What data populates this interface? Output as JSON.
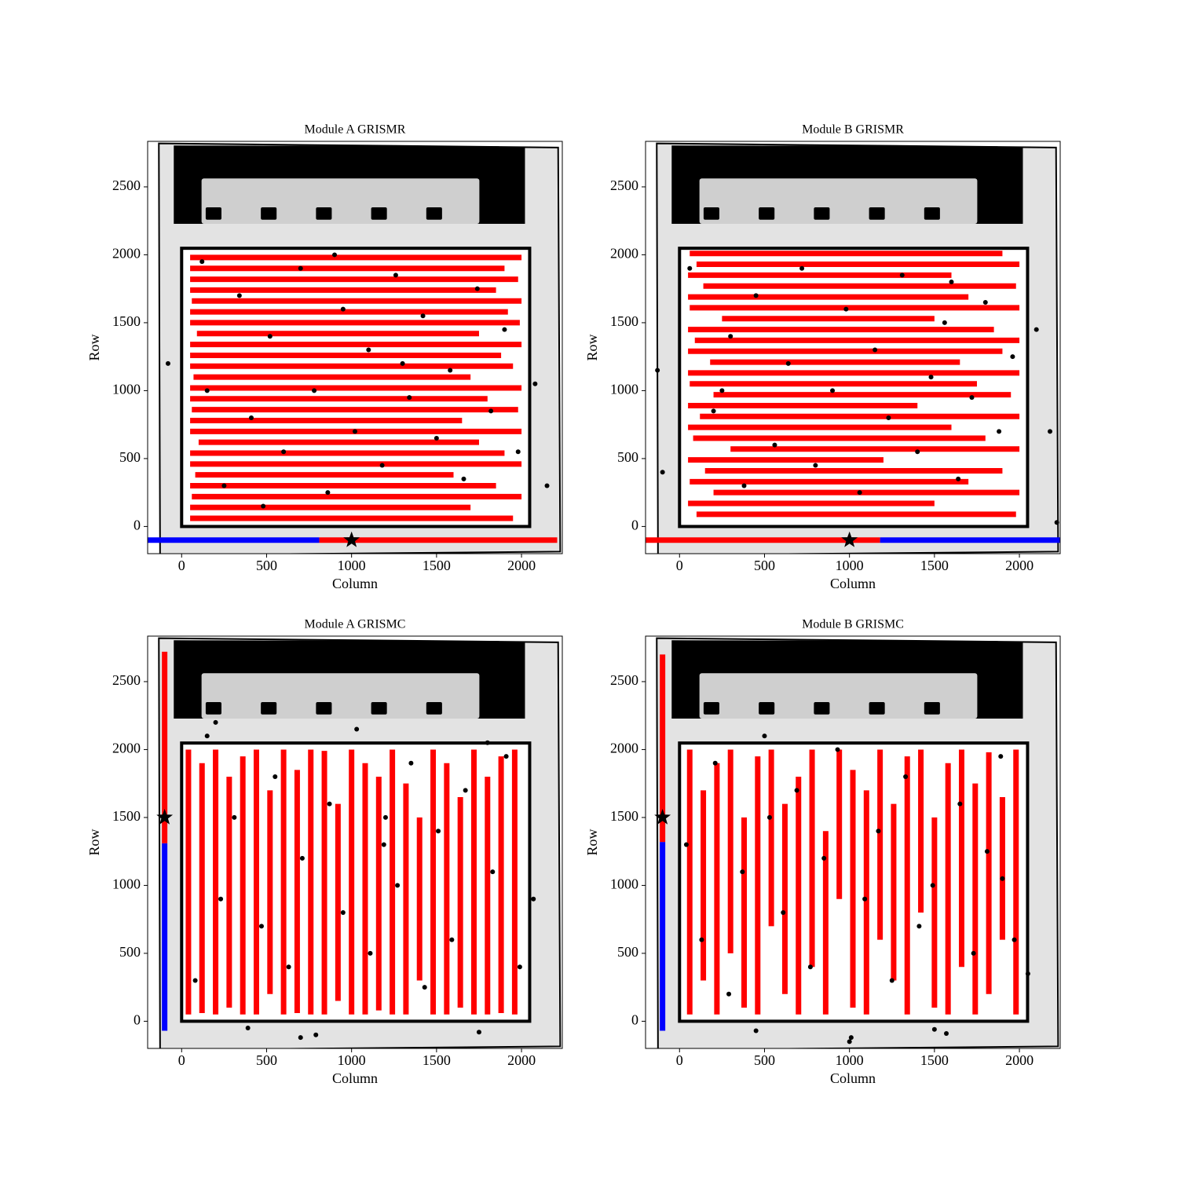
{
  "chart_data": [
    {
      "type": "scatter",
      "title": "Module A GRISMR",
      "xlabel": "Column",
      "ylabel": "Row",
      "xlim": [
        -200,
        2240
      ],
      "ylim": [
        -200,
        2835
      ],
      "xticks": [
        0,
        500,
        1000,
        1500,
        2000
      ],
      "yticks": [
        0,
        500,
        1000,
        1500,
        2000,
        2500
      ],
      "detector_box": {
        "x": [
          0,
          2048
        ],
        "y": [
          0,
          2048
        ]
      },
      "traces": {
        "orientation": "horizontal",
        "color": "#ff0000",
        "x0": [
          50,
          50,
          60,
          50,
          80,
          50,
          50,
          100,
          50,
          50,
          60,
          50,
          50,
          70,
          50,
          50,
          50,
          90,
          50,
          50,
          60,
          50,
          50,
          50,
          50
        ],
        "x1": [
          1950,
          1700,
          2000,
          1850,
          1600,
          2000,
          1900,
          1750,
          2000,
          1650,
          1980,
          1800,
          2000,
          1700,
          1950,
          1880,
          2000,
          1750,
          1990,
          1920,
          2000,
          1850,
          1980,
          1900,
          2000
        ],
        "y": [
          60,
          140,
          220,
          300,
          380,
          460,
          540,
          620,
          700,
          780,
          860,
          940,
          1020,
          1100,
          1180,
          1260,
          1340,
          1420,
          1500,
          1580,
          1660,
          1740,
          1820,
          1900,
          1980
        ]
      },
      "sources": {
        "color": "#000000",
        "x": [
          -80,
          120,
          250,
          340,
          410,
          520,
          600,
          700,
          780,
          860,
          950,
          1020,
          1100,
          1180,
          1260,
          1340,
          1420,
          1500,
          1580,
          1660,
          1740,
          1820,
          1900,
          1980,
          2080,
          2150,
          150,
          480,
          900,
          1300
        ],
        "y": [
          1200,
          1950,
          300,
          1700,
          800,
          1400,
          550,
          1900,
          1000,
          250,
          1600,
          700,
          1300,
          450,
          1850,
          950,
          1550,
          650,
          1150,
          350,
          1750,
          850,
          1450,
          550,
          1050,
          300,
          1000,
          150,
          2000,
          1200
        ]
      },
      "dispersion_bar": {
        "orientation": "horizontal",
        "position": -100,
        "segments": [
          {
            "color": "#0000ff",
            "range": [
              -200,
              810
            ]
          },
          {
            "color": "#ff0000",
            "range": [
              810,
              2210
            ]
          }
        ],
        "star": [
          1000,
          -100
        ]
      }
    },
    {
      "type": "scatter",
      "title": "Module B GRISMR",
      "xlabel": "Column",
      "ylabel": "Row",
      "xlim": [
        -200,
        2240
      ],
      "ylim": [
        -200,
        2835
      ],
      "xticks": [
        0,
        500,
        1000,
        1500,
        2000
      ],
      "yticks": [
        0,
        500,
        1000,
        1500,
        2000,
        2500
      ],
      "detector_box": {
        "x": [
          0,
          2048
        ],
        "y": [
          0,
          2048
        ]
      },
      "traces": {
        "orientation": "horizontal",
        "color": "#ff0000",
        "x0": [
          100,
          50,
          200,
          60,
          150,
          50,
          300,
          80,
          50,
          120,
          50,
          200,
          60,
          50,
          180,
          50,
          90,
          50,
          250,
          60,
          50,
          140,
          50,
          100,
          60
        ],
        "x1": [
          1980,
          1500,
          2000,
          1700,
          1900,
          1200,
          2000,
          1800,
          1600,
          2000,
          1400,
          1950,
          1750,
          2000,
          1650,
          1900,
          2000,
          1850,
          1500,
          2000,
          1700,
          1980,
          1600,
          2000,
          1900
        ],
        "y": [
          90,
          170,
          250,
          330,
          410,
          490,
          570,
          650,
          730,
          810,
          890,
          970,
          1050,
          1130,
          1210,
          1290,
          1370,
          1450,
          1530,
          1610,
          1690,
          1770,
          1850,
          1930,
          2010
        ]
      },
      "sources": {
        "color": "#000000",
        "x": [
          -130,
          -100,
          60,
          200,
          300,
          380,
          450,
          560,
          640,
          720,
          800,
          900,
          980,
          1060,
          1150,
          1230,
          1310,
          1400,
          1480,
          1560,
          1640,
          1720,
          1800,
          1880,
          1960,
          2100,
          2180,
          2220,
          250,
          1600
        ],
        "y": [
          1150,
          400,
          1900,
          850,
          1400,
          300,
          1700,
          600,
          1200,
          1900,
          450,
          1000,
          1600,
          250,
          1300,
          800,
          1850,
          550,
          1100,
          1500,
          350,
          950,
          1650,
          700,
          1250,
          1450,
          700,
          30,
          1000,
          1800
        ]
      },
      "dispersion_bar": {
        "orientation": "horizontal",
        "position": -100,
        "segments": [
          {
            "color": "#ff0000",
            "range": [
              -200,
              1180
            ]
          },
          {
            "color": "#0000ff",
            "range": [
              1180,
              2240
            ]
          }
        ],
        "star": [
          1000,
          -100
        ]
      }
    },
    {
      "type": "scatter",
      "title": "Module A GRISMC",
      "xlabel": "Column",
      "ylabel": "Row",
      "xlim": [
        -200,
        2240
      ],
      "ylim": [
        -200,
        2835
      ],
      "xticks": [
        0,
        500,
        1000,
        1500,
        2000
      ],
      "yticks": [
        0,
        500,
        1000,
        1500,
        2000,
        2500
      ],
      "detector_box": {
        "x": [
          0,
          2048
        ],
        "y": [
          0,
          2048
        ]
      },
      "traces": {
        "orientation": "vertical",
        "color": "#ff0000",
        "x": [
          40,
          120,
          200,
          280,
          360,
          440,
          520,
          600,
          680,
          760,
          840,
          920,
          1000,
          1080,
          1160,
          1240,
          1320,
          1400,
          1480,
          1560,
          1640,
          1720,
          1800,
          1880,
          1960
        ],
        "y0": [
          50,
          60,
          50,
          100,
          50,
          50,
          200,
          50,
          60,
          50,
          50,
          150,
          50,
          50,
          80,
          50,
          50,
          300,
          50,
          50,
          100,
          50,
          50,
          60,
          50
        ],
        "y1": [
          2000,
          1900,
          2000,
          1800,
          1950,
          2000,
          1700,
          2000,
          1850,
          2000,
          1990,
          1600,
          2000,
          1900,
          1800,
          2000,
          1750,
          1500,
          2000,
          1900,
          1650,
          2000,
          1800,
          1950,
          2000
        ]
      },
      "sources": {
        "color": "#000000",
        "x": [
          80,
          150,
          230,
          310,
          390,
          470,
          550,
          630,
          710,
          790,
          870,
          950,
          1030,
          1110,
          1190,
          1270,
          1350,
          1430,
          1510,
          1590,
          1670,
          1750,
          1830,
          1910,
          1990,
          2070,
          200,
          700,
          1200,
          1800
        ],
        "y": [
          300,
          2100,
          900,
          1500,
          -50,
          700,
          1800,
          400,
          1200,
          -100,
          1600,
          800,
          2150,
          500,
          1300,
          1000,
          1900,
          250,
          1400,
          600,
          1700,
          -80,
          1100,
          1950,
          400,
          900,
          2200,
          -120,
          1500,
          2050
        ]
      },
      "dispersion_bar": {
        "orientation": "vertical",
        "position": -100,
        "segments": [
          {
            "color": "#0000ff",
            "range": [
              -70,
              1310
            ]
          },
          {
            "color": "#ff0000",
            "range": [
              1310,
              2720
            ]
          }
        ],
        "star": [
          -100,
          1500
        ]
      }
    },
    {
      "type": "scatter",
      "title": "Module B GRISMC",
      "xlabel": "Column",
      "ylabel": "Row",
      "xlim": [
        -200,
        2240
      ],
      "ylim": [
        -200,
        2835
      ],
      "xticks": [
        0,
        500,
        1000,
        1500,
        2000
      ],
      "yticks": [
        0,
        500,
        1000,
        1500,
        2000,
        2500
      ],
      "detector_box": {
        "x": [
          0,
          2048
        ],
        "y": [
          0,
          2048
        ]
      },
      "traces": {
        "orientation": "vertical",
        "color": "#ff0000",
        "x": [
          60,
          140,
          220,
          300,
          380,
          460,
          540,
          620,
          700,
          780,
          860,
          940,
          1020,
          1100,
          1180,
          1260,
          1340,
          1420,
          1500,
          1580,
          1660,
          1740,
          1820,
          1900,
          1980
        ],
        "y0": [
          50,
          300,
          50,
          500,
          100,
          50,
          700,
          200,
          50,
          400,
          50,
          900,
          100,
          50,
          600,
          300,
          50,
          800,
          100,
          50,
          400,
          50,
          200,
          600,
          50
        ],
        "y1": [
          2000,
          1700,
          1900,
          2000,
          1500,
          1950,
          2000,
          1600,
          1800,
          2000,
          1400,
          2000,
          1850,
          1700,
          2000,
          1600,
          1950,
          2000,
          1500,
          1900,
          2000,
          1750,
          1980,
          1650,
          2000
        ]
      },
      "sources": {
        "color": "#000000",
        "x": [
          40,
          130,
          210,
          290,
          370,
          450,
          530,
          610,
          690,
          770,
          850,
          930,
          1010,
          1090,
          1170,
          1250,
          1330,
          1410,
          1490,
          1570,
          1650,
          1730,
          1810,
          1890,
          1970,
          2050,
          500,
          1000,
          1500,
          1900
        ],
        "y": [
          1300,
          600,
          1900,
          200,
          1100,
          -70,
          1500,
          800,
          1700,
          400,
          1200,
          2000,
          -120,
          900,
          1400,
          300,
          1800,
          700,
          1000,
          -90,
          1600,
          500,
          1250,
          1950,
          600,
          350,
          2100,
          -150,
          -60,
          1050
        ]
      },
      "dispersion_bar": {
        "orientation": "vertical",
        "position": -100,
        "segments": [
          {
            "color": "#0000ff",
            "range": [
              -70,
              1320
            ]
          },
          {
            "color": "#ff0000",
            "range": [
              1320,
              2700
            ]
          }
        ],
        "star": [
          -100,
          1500
        ]
      }
    }
  ]
}
